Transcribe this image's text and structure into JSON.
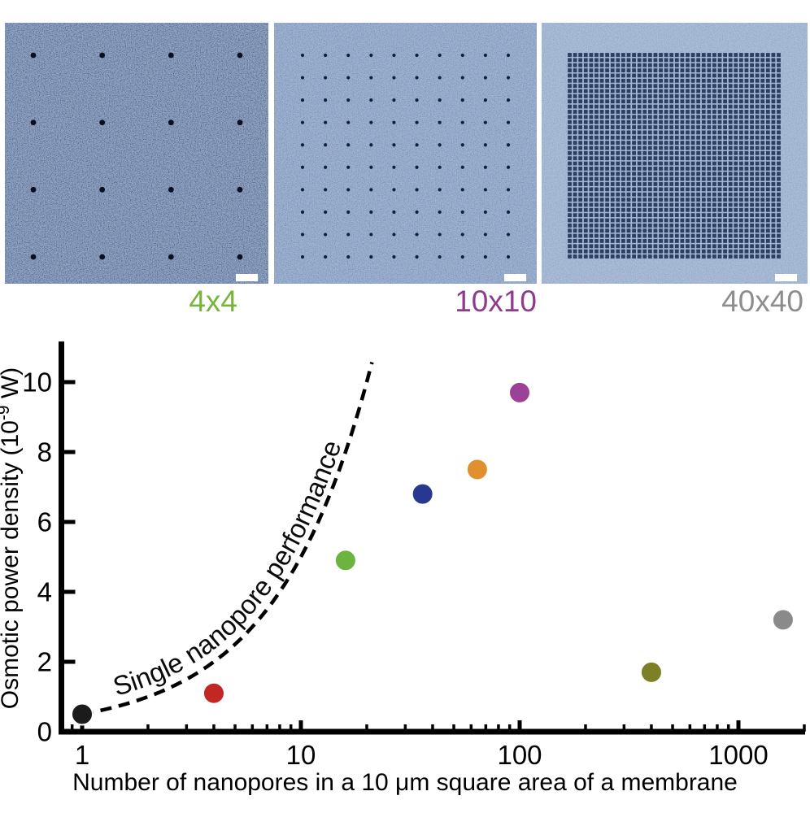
{
  "figure": {
    "panels": [
      {
        "label": "4x4",
        "label_color": "#76b43a",
        "grid": 4,
        "base_color": "#47659f",
        "pore_color": "#0a0f22",
        "pore_shape": "circle",
        "scale_bar": true
      },
      {
        "label": "10x10",
        "label_color": "#8e3b8e",
        "grid": 10,
        "base_color": "#7b97c2",
        "pore_color": "#141e3a",
        "pore_shape": "circle",
        "scale_bar": true
      },
      {
        "label": "40x40",
        "label_color": "#8d8d8d",
        "grid": 40,
        "base_color": "#93abcd",
        "pore_color": "#2b3e63",
        "pore_shape": "square",
        "scale_bar": true
      }
    ]
  },
  "chart_data": {
    "type": "scatter",
    "title": "",
    "xlabel": "Number of nanopores in a 10 μm square area of a membrane",
    "ylabel": "Osmotic power density (10⁻⁹ W)",
    "ylabel_main": "Osmotic power density (10",
    "ylabel_superscript": "-9",
    "ylabel_end": " W)",
    "x_scale": "log",
    "xlim": [
      0.8,
      2000
    ],
    "ylim": [
      0,
      11.2
    ],
    "x_ticks": [
      1,
      10,
      100,
      1000
    ],
    "y_ticks": [
      0,
      2,
      4,
      6,
      8,
      10
    ],
    "grid": false,
    "legend": "none",
    "points": [
      {
        "x": 1,
        "y": 0.5,
        "color": "#1b1b1b"
      },
      {
        "x": 4,
        "y": 1.1,
        "color": "#c32724"
      },
      {
        "x": 16,
        "y": 4.9,
        "color": "#6cb33f"
      },
      {
        "x": 36,
        "y": 6.8,
        "color": "#28388f"
      },
      {
        "x": 64,
        "y": 7.5,
        "color": "#e0902f"
      },
      {
        "x": 100,
        "y": 9.7,
        "color": "#9c4198"
      },
      {
        "x": 400,
        "y": 1.7,
        "color": "#7d8026"
      },
      {
        "x": 1600,
        "y": 3.2,
        "color": "#8a8a8a"
      }
    ],
    "reference_curve": {
      "label": "Single nanopore performance",
      "power_per_pore": 0.5,
      "n_start": 1,
      "n_end": 22.4,
      "line_style": "dashed",
      "color": "#000000"
    }
  }
}
